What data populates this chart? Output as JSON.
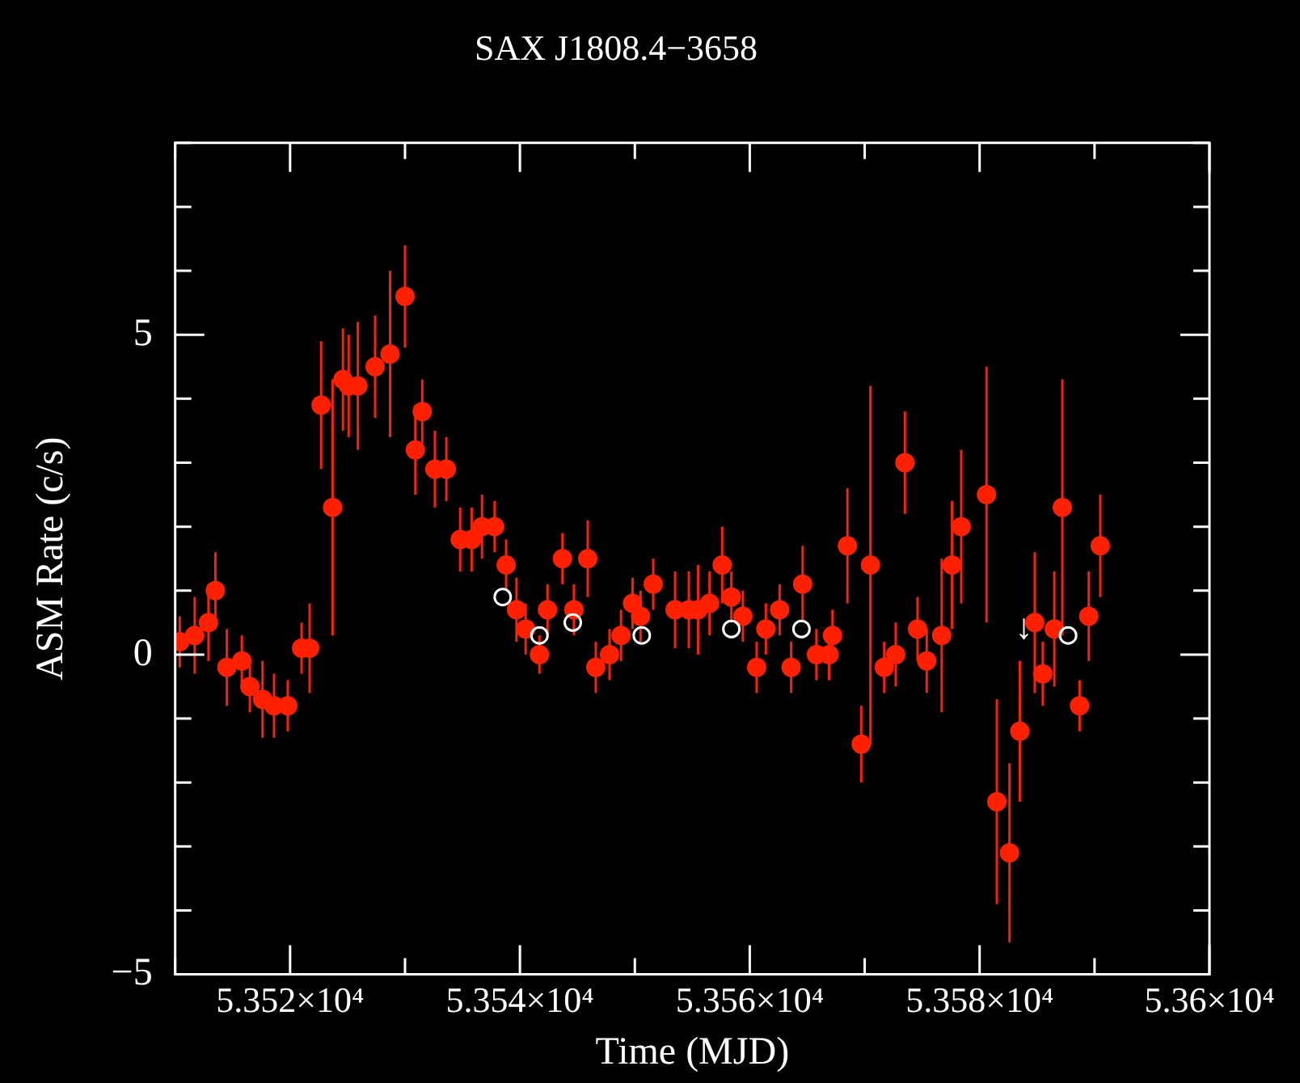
{
  "chart_data": {
    "type": "scatter",
    "title": "SAX J1808.4−3658",
    "xlabel": "Time (MJD)",
    "ylabel": "ASM Rate (c/s)",
    "xlim": [
      53510,
      53600
    ],
    "ylim": [
      -5,
      8
    ],
    "xticks": [
      {
        "value": 53510,
        "label": null
      },
      {
        "value": 53520,
        "label": "5.352×10⁴"
      },
      {
        "value": 53530,
        "label": null
      },
      {
        "value": 53540,
        "label": "5.354×10⁴"
      },
      {
        "value": 53550,
        "label": null
      },
      {
        "value": 53560,
        "label": "5.356×10⁴"
      },
      {
        "value": 53570,
        "label": null
      },
      {
        "value": 53580,
        "label": "5.358×10⁴"
      },
      {
        "value": 53590,
        "label": null
      },
      {
        "value": 53600,
        "label": "5.36×10⁴"
      }
    ],
    "yticks": [
      {
        "value": -5,
        "label": "−5"
      },
      {
        "value": -4,
        "label": null
      },
      {
        "value": -3,
        "label": null
      },
      {
        "value": -2,
        "label": null
      },
      {
        "value": -1,
        "label": null
      },
      {
        "value": 0,
        "label": "0"
      },
      {
        "value": 1,
        "label": null
      },
      {
        "value": 2,
        "label": null
      },
      {
        "value": 3,
        "label": null
      },
      {
        "value": 4,
        "label": null
      },
      {
        "value": 5,
        "label": "5"
      },
      {
        "value": 6,
        "label": null
      },
      {
        "value": 7,
        "label": null
      },
      {
        "value": 8,
        "label": null
      }
    ],
    "grid": false,
    "legend": false,
    "marker": "circle",
    "annotations": [
      {
        "text": "↓",
        "x": 53584.2,
        "y": 0.3
      }
    ],
    "series": [
      {
        "color": "#ff2000",
        "x": [
          53510.4,
          53511.7,
          53512.9,
          53513.5,
          53514.5,
          53515.8,
          53516.5,
          53517.6,
          53518.6,
          53519.8,
          53521.0,
          53521.7,
          53522.7,
          53523.7,
          53524.6,
          53525.1,
          53525.9,
          53527.4,
          53528.7,
          53530.0,
          53530.9,
          53531.5,
          53532.6,
          53533.6,
          53534.8,
          53535.8,
          53536.7,
          53537.8,
          53538.8,
          53539.7,
          53540.5,
          53541.7,
          53542.4,
          53543.7,
          53544.7,
          53545.9,
          53546.6,
          53547.8,
          53548.8,
          53549.8,
          53550.5,
          53551.6,
          53553.5,
          53554.7,
          53555.5,
          53556.5,
          53557.6,
          53558.4,
          53559.4,
          53560.6,
          53561.4,
          53562.6,
          53563.6,
          53564.6,
          53565.8,
          53566.9,
          53567.2,
          53568.5,
          53569.7,
          53570.5,
          53571.7,
          53572.7,
          53573.5,
          53574.6,
          53575.4,
          53576.7,
          53577.6,
          53578.4,
          53580.6,
          53581.5,
          53582.6,
          53583.5,
          53584.8,
          53585.5,
          53586.5,
          53587.2,
          53588.7,
          53589.5,
          53590.5
        ],
        "values": [
          0.2,
          0.3,
          0.5,
          1.0,
          -0.2,
          -0.1,
          -0.5,
          -0.7,
          -0.8,
          -0.8,
          0.1,
          0.1,
          3.9,
          2.3,
          4.3,
          4.2,
          4.2,
          4.5,
          4.7,
          5.6,
          3.2,
          3.8,
          2.9,
          2.9,
          1.8,
          1.8,
          2.0,
          2.0,
          1.4,
          0.7,
          0.4,
          0.0,
          0.7,
          1.5,
          0.7,
          1.5,
          -0.2,
          0.0,
          0.3,
          0.8,
          0.6,
          1.1,
          0.7,
          0.7,
          0.7,
          0.8,
          1.4,
          0.9,
          0.6,
          -0.2,
          0.4,
          0.7,
          -0.2,
          1.1,
          0.0,
          0.0,
          0.3,
          1.7,
          -1.4,
          1.4,
          -0.2,
          0.0,
          3.0,
          0.4,
          -0.1,
          0.3,
          1.4,
          2.0,
          2.5,
          -2.3,
          -3.1,
          -1.2,
          0.5,
          -0.3,
          0.4,
          2.3,
          -0.8,
          0.6,
          1.7
        ],
        "errors": [
          0.4,
          0.6,
          0.6,
          0.6,
          0.6,
          0.4,
          0.4,
          0.6,
          0.5,
          0.4,
          0.4,
          0.7,
          1.0,
          2.0,
          0.8,
          0.8,
          1.0,
          0.8,
          1.3,
          0.8,
          0.7,
          0.5,
          0.6,
          0.5,
          0.5,
          0.5,
          0.5,
          0.4,
          0.4,
          0.5,
          0.4,
          0.3,
          0.4,
          0.4,
          0.4,
          0.6,
          0.4,
          0.4,
          0.4,
          0.4,
          0.4,
          0.4,
          0.6,
          0.6,
          0.7,
          0.5,
          0.6,
          0.4,
          0.4,
          0.4,
          0.4,
          0.4,
          0.4,
          0.6,
          0.4,
          0.4,
          0.4,
          0.9,
          0.6,
          2.8,
          0.4,
          0.5,
          0.8,
          0.5,
          0.5,
          1.2,
          1.0,
          1.2,
          2.0,
          1.6,
          1.4,
          1.1,
          1.1,
          0.5,
          0.9,
          2.0,
          0.4,
          0.7,
          0.8
        ]
      },
      {
        "color": "#ffffff",
        "x": [
          53538.5,
          53541.7,
          53544.6,
          53550.6,
          53558.4,
          53564.5,
          53587.7
        ],
        "values": [
          0.9,
          0.3,
          0.5,
          0.3,
          0.4,
          0.4,
          0.3
        ]
      }
    ]
  }
}
